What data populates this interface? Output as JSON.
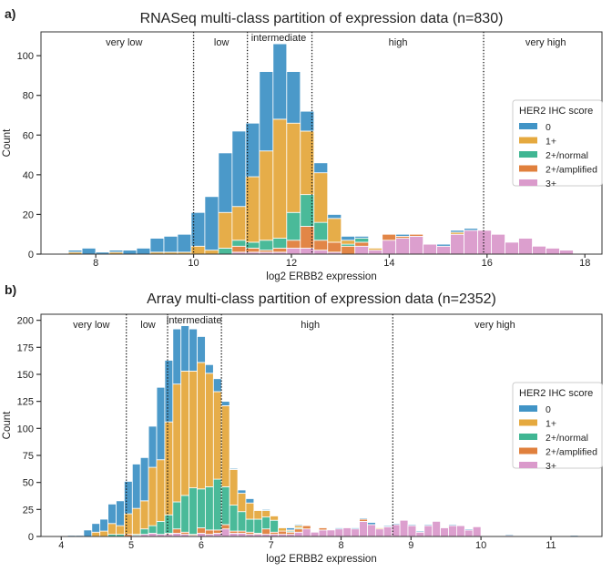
{
  "colors": {
    "0": "#4194c6",
    "1+": "#e5a93f",
    "2+/normal": "#40b693",
    "2+/amplified": "#e0803d",
    "3+": "#da9acb"
  },
  "chart_data": [
    {
      "type": "bar",
      "stacked": true,
      "panel_label": "a)",
      "title": "RNASeq multi-class partition of expression data (n=830)",
      "xlabel": "log2 ERBB2 expression",
      "ylabel": "Count",
      "xlim": [
        6.88,
        18.35
      ],
      "ylim": [
        0,
        112
      ],
      "xticks": [
        "8",
        "10",
        "12",
        "14",
        "16",
        "18"
      ],
      "yticks": [
        "0",
        "20",
        "40",
        "60",
        "80",
        "100"
      ],
      "grid": false,
      "bin_start": 7.44,
      "bin_width": 0.279,
      "legend": {
        "title": "HER2 IHC score",
        "position": "right",
        "entries": [
          "0",
          "1+",
          "2+/normal",
          "2+/amplified",
          "3+"
        ]
      },
      "thresholds": [
        10.0,
        11.1,
        12.42,
        15.93
      ],
      "regions": [
        {
          "label": "very low",
          "x": 8.58
        },
        {
          "label": "low",
          "x": 10.57
        },
        {
          "label": "intermediate",
          "x": 11.74
        },
        {
          "label": "high",
          "x": 14.18
        },
        {
          "label": "very high",
          "x": 17.2
        }
      ],
      "series": [
        {
          "name": "0",
          "values": [
            1,
            3,
            1,
            1,
            2,
            3,
            7,
            8,
            9,
            17,
            27,
            30,
            38,
            27,
            40,
            38,
            26,
            10,
            5,
            2,
            2,
            1,
            0,
            0,
            1,
            0,
            0,
            1,
            1,
            1,
            0,
            0,
            0,
            0,
            0,
            0,
            0
          ]
        },
        {
          "name": "1+",
          "values": [
            1,
            0,
            0,
            1,
            0,
            0,
            1,
            1,
            1,
            4,
            2,
            18,
            17,
            33,
            45,
            60,
            45,
            32,
            25,
            12,
            2,
            0,
            1,
            0,
            0,
            0,
            0,
            0,
            1,
            0,
            0,
            0,
            0,
            0,
            0,
            0,
            0
          ]
        },
        {
          "name": "2+/normal",
          "values": [
            0,
            0,
            0,
            0,
            0,
            0,
            0,
            0,
            0,
            0,
            0,
            3,
            3,
            3,
            5,
            5,
            14,
            16,
            9,
            0,
            1,
            2,
            0,
            0,
            0,
            0,
            0,
            0,
            0,
            0,
            0,
            0,
            0,
            0,
            0,
            0,
            0
          ]
        },
        {
          "name": "2+/amplified",
          "values": [
            0,
            0,
            0,
            0,
            0,
            0,
            0,
            0,
            0,
            0,
            0,
            0,
            3,
            2,
            1,
            2,
            4,
            11,
            5,
            5,
            4,
            2,
            0,
            3,
            1,
            1,
            0,
            0,
            0,
            0,
            0,
            0,
            0,
            0,
            0,
            0,
            0
          ]
        },
        {
          "name": "3+",
          "values": [
            0,
            0,
            0,
            0,
            0,
            0,
            0,
            0,
            0,
            0,
            0,
            0,
            1,
            1,
            1,
            1,
            3,
            3,
            2,
            1,
            0,
            4,
            2,
            7,
            8,
            9,
            5,
            4,
            10,
            12,
            12,
            10,
            6,
            8,
            4,
            3,
            2
          ]
        }
      ]
    },
    {
      "type": "bar",
      "stacked": true,
      "panel_label": "b)",
      "title": "Array multi-class partition of expression data (n=2352)",
      "xlabel": "log2 ERBB2 expression",
      "ylabel": "Count",
      "xlim": [
        3.71,
        11.73
      ],
      "ylim": [
        0,
        205.6
      ],
      "xticks": [
        "4",
        "5",
        "6",
        "7",
        "8",
        "9",
        "10",
        "11"
      ],
      "yticks": [
        "0",
        "25",
        "50",
        "75",
        "100",
        "125",
        "150",
        "175",
        "200"
      ],
      "grid": false,
      "bin_start": 3.973,
      "bin_width": 0.1159,
      "legend": {
        "title": "HER2 IHC score",
        "position": "right",
        "entries": [
          "0",
          "1+",
          "2+/normal",
          "2+/amplified",
          "3+"
        ]
      },
      "thresholds": [
        4.93,
        5.52,
        6.29,
        8.74
      ],
      "regions": [
        {
          "label": "very low",
          "x": 4.43
        },
        {
          "label": "low",
          "x": 5.24
        },
        {
          "label": "intermediate",
          "x": 5.9
        },
        {
          "label": "high",
          "x": 7.56
        },
        {
          "label": "very high",
          "x": 10.2
        }
      ],
      "series": [
        {
          "name": "0",
          "values": [
            0,
            1,
            1,
            6,
            8,
            11,
            18,
            23,
            30,
            41,
            40,
            38,
            67,
            57,
            51,
            42,
            39,
            24,
            8,
            12,
            4,
            1,
            3,
            4,
            0,
            1,
            0,
            0,
            2,
            1,
            0,
            0,
            0,
            0,
            1,
            0,
            1,
            1,
            2,
            0,
            1,
            1,
            0,
            1,
            1,
            1,
            0,
            0,
            1,
            0,
            1,
            0,
            0,
            0,
            0,
            1,
            0,
            0,
            0,
            0,
            0,
            0,
            0,
            1
          ]
        },
        {
          "name": "1+",
          "values": [
            0,
            0,
            0,
            0,
            4,
            5,
            10,
            8,
            19,
            24,
            26,
            54,
            57,
            86,
            109,
            115,
            108,
            117,
            105,
            81,
            75,
            33,
            17,
            15,
            8,
            6,
            4,
            3,
            1,
            2,
            0,
            0,
            0,
            0,
            0,
            0,
            0,
            0,
            0,
            1,
            0,
            0,
            0,
            0,
            0,
            0,
            0,
            0,
            0,
            0,
            0,
            0,
            0,
            0,
            0,
            0,
            0,
            0,
            0,
            0,
            0,
            0,
            0,
            0
          ]
        },
        {
          "name": "2+/normal",
          "values": [
            0,
            0,
            0,
            0,
            0,
            0,
            2,
            2,
            0,
            1,
            5,
            7,
            12,
            17,
            25,
            34,
            43,
            36,
            40,
            47,
            35,
            24,
            18,
            12,
            13,
            11,
            11,
            0,
            1,
            1,
            0,
            0,
            0,
            0,
            0,
            0,
            0,
            0,
            0,
            0,
            0,
            0,
            0,
            0,
            0,
            0,
            0,
            0,
            0,
            0,
            0,
            0,
            0,
            0,
            0,
            0,
            0,
            0,
            0,
            0,
            0,
            0,
            0,
            0
          ]
        },
        {
          "name": "2+/amplified",
          "values": [
            0,
            0,
            0,
            0,
            0,
            0,
            0,
            0,
            2,
            0,
            0,
            0,
            0,
            1,
            4,
            2,
            1,
            5,
            4,
            3,
            4,
            2,
            2,
            2,
            1,
            5,
            2,
            3,
            2,
            3,
            3,
            0,
            2,
            0,
            0,
            0,
            0,
            2,
            0,
            0,
            0,
            0,
            0,
            0,
            0,
            0,
            0,
            0,
            0,
            0,
            0,
            0,
            0,
            0,
            0,
            0,
            0,
            0,
            0,
            0,
            0,
            0,
            0,
            0
          ]
        },
        {
          "name": "3+",
          "values": [
            0,
            0,
            0,
            0,
            0,
            0,
            0,
            0,
            0,
            1,
            2,
            3,
            2,
            2,
            3,
            2,
            1,
            3,
            2,
            3,
            7,
            3,
            3,
            2,
            2,
            2,
            2,
            2,
            2,
            4,
            7,
            4,
            6,
            6,
            7,
            8,
            7,
            14,
            11,
            7,
            9,
            11,
            15,
            10,
            4,
            10,
            14,
            8,
            10,
            10,
            6,
            9,
            0,
            0,
            0,
            1,
            0,
            0,
            0,
            0,
            0,
            0,
            0,
            0
          ]
        }
      ]
    }
  ]
}
